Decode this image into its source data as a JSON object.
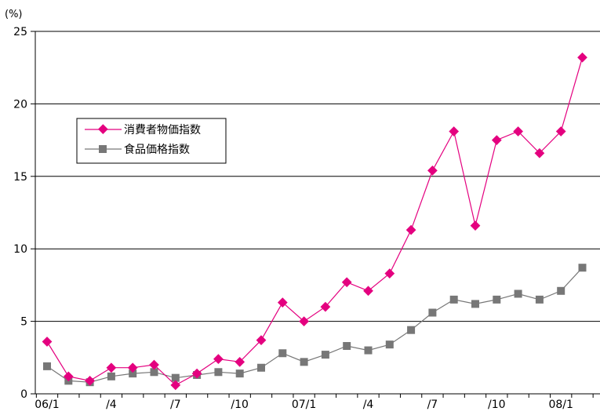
{
  "chart_data": {
    "type": "line",
    "title": "",
    "ylabel": "(%)",
    "xlabel": "",
    "ylim": [
      0,
      25
    ],
    "yticks": [
      0,
      5,
      10,
      15,
      20,
      25
    ],
    "grid": {
      "horizontal": true,
      "vertical": false
    },
    "legend_position": "upper-left",
    "periods": [
      "06/1",
      "06/2",
      "06/3",
      "06/4",
      "06/5",
      "06/6",
      "06/7",
      "06/8",
      "06/9",
      "06/10",
      "06/11",
      "06/12",
      "07/1",
      "07/2",
      "07/3",
      "07/4",
      "07/5",
      "07/6",
      "07/7",
      "07/8",
      "07/9",
      "07/10",
      "07/11",
      "07/12",
      "08/1",
      "08/2"
    ],
    "x_tick_labels": [
      {
        "index": 0,
        "label": "06/1"
      },
      {
        "index": 3,
        "label": "/4"
      },
      {
        "index": 6,
        "label": "/7"
      },
      {
        "index": 9,
        "label": "/10"
      },
      {
        "index": 12,
        "label": "07/1"
      },
      {
        "index": 15,
        "label": "/4"
      },
      {
        "index": 18,
        "label": "/7"
      },
      {
        "index": 21,
        "label": "/10"
      },
      {
        "index": 24,
        "label": "08/1"
      }
    ],
    "series": [
      {
        "name": "消費者物価指数",
        "color": "#e4007f",
        "marker": "diamond",
        "values": [
          3.6,
          1.2,
          0.9,
          1.8,
          1.8,
          2.0,
          0.6,
          1.4,
          2.4,
          2.2,
          3.7,
          6.3,
          5.0,
          6.0,
          7.7,
          7.1,
          8.3,
          11.3,
          15.4,
          18.1,
          11.6,
          17.5,
          18.1,
          16.6,
          18.1,
          23.2
        ]
      },
      {
        "name": "食品価格指数",
        "color": "#777777",
        "marker": "square",
        "values": [
          1.9,
          0.9,
          0.8,
          1.2,
          1.4,
          1.5,
          1.1,
          1.3,
          1.5,
          1.4,
          1.8,
          2.8,
          2.2,
          2.7,
          3.3,
          3.0,
          3.4,
          4.4,
          5.6,
          6.5,
          6.2,
          6.5,
          6.9,
          6.5,
          7.1,
          8.7
        ]
      }
    ]
  }
}
